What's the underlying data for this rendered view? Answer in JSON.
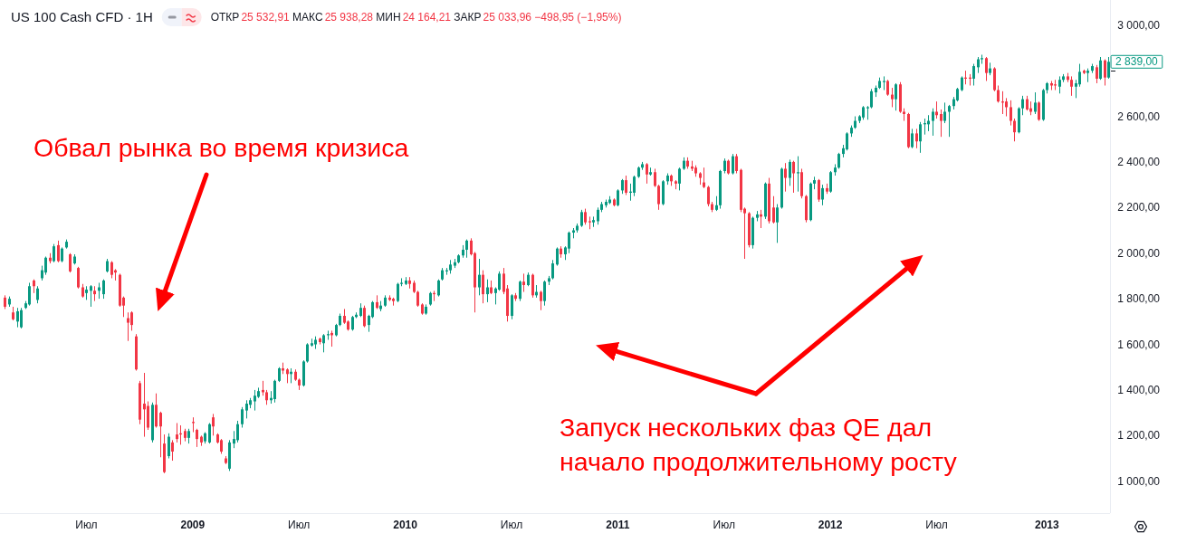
{
  "chart_data": {
    "type": "candlestick",
    "title": "US 100 Cash CFD · 1H",
    "subtitle": "ОТКР25 532,91 МАКС25 938,28 МИН24 164,21 ЗАКР25 033,96 −498,95 (−1,95%)",
    "x": [
      "2008-02-18",
      "2008-02-25",
      "2008-03-03",
      "2008-03-10",
      "2008-03-17",
      "2008-03-24",
      "2008-03-31",
      "2008-04-07",
      "2008-04-14",
      "2008-04-21",
      "2008-04-28",
      "2008-05-05",
      "2008-05-12",
      "2008-05-19",
      "2008-05-26",
      "2008-06-02",
      "2008-06-09",
      "2008-06-16",
      "2008-06-23",
      "2008-06-30",
      "2008-07-07",
      "2008-07-14",
      "2008-07-21",
      "2008-07-28",
      "2008-08-04",
      "2008-08-11",
      "2008-08-18",
      "2008-08-25",
      "2008-09-01",
      "2008-09-08",
      "2008-09-15",
      "2008-09-22",
      "2008-09-29",
      "2008-10-06",
      "2008-10-13",
      "2008-10-20",
      "2008-10-27",
      "2008-11-03",
      "2008-11-10",
      "2008-11-17",
      "2008-11-24",
      "2008-12-01",
      "2008-12-08",
      "2008-12-15",
      "2008-12-22",
      "2008-12-29",
      "2009-01-05",
      "2009-01-12",
      "2009-01-19",
      "2009-01-26",
      "2009-02-02",
      "2009-02-09",
      "2009-02-16",
      "2009-02-23",
      "2009-03-02",
      "2009-03-09",
      "2009-03-16",
      "2009-03-23",
      "2009-03-30",
      "2009-04-06",
      "2009-04-13",
      "2009-04-20",
      "2009-04-27",
      "2009-05-04",
      "2009-05-11",
      "2009-05-18",
      "2009-05-25",
      "2009-06-01",
      "2009-06-08",
      "2009-06-15",
      "2009-06-22",
      "2009-06-29",
      "2009-07-06",
      "2009-07-13",
      "2009-07-20",
      "2009-07-27",
      "2009-08-03",
      "2009-08-10",
      "2009-08-17",
      "2009-08-24",
      "2009-08-31",
      "2009-09-07",
      "2009-09-14",
      "2009-09-21",
      "2009-09-28",
      "2009-10-05",
      "2009-10-12",
      "2009-10-19",
      "2009-10-26",
      "2009-11-02",
      "2009-11-09",
      "2009-11-16",
      "2009-11-23",
      "2009-11-30",
      "2009-12-07",
      "2009-12-14",
      "2009-12-21",
      "2009-12-28",
      "2010-01-04",
      "2010-01-11",
      "2010-01-18",
      "2010-01-25",
      "2010-02-01",
      "2010-02-08",
      "2010-02-15",
      "2010-02-22",
      "2010-03-01",
      "2010-03-08",
      "2010-03-15",
      "2010-03-22",
      "2010-03-29",
      "2010-04-05",
      "2010-04-12",
      "2010-04-19",
      "2010-04-26",
      "2010-05-03",
      "2010-05-10",
      "2010-05-17",
      "2010-05-24",
      "2010-05-31",
      "2010-06-07",
      "2010-06-14",
      "2010-06-21",
      "2010-06-28",
      "2010-07-05",
      "2010-07-12",
      "2010-07-19",
      "2010-07-26",
      "2010-08-02",
      "2010-08-09",
      "2010-08-16",
      "2010-08-23",
      "2010-08-30",
      "2010-09-06",
      "2010-09-13",
      "2010-09-20",
      "2010-09-27",
      "2010-10-04",
      "2010-10-11",
      "2010-10-18",
      "2010-10-25",
      "2010-11-01",
      "2010-11-08",
      "2010-11-15",
      "2010-11-22",
      "2010-11-29",
      "2010-12-06",
      "2010-12-13",
      "2010-12-20",
      "2010-12-27",
      "2011-01-03",
      "2011-01-10",
      "2011-01-17",
      "2011-01-24",
      "2011-01-31",
      "2011-02-07",
      "2011-02-14",
      "2011-02-21",
      "2011-02-28",
      "2011-03-07",
      "2011-03-14",
      "2011-03-21",
      "2011-03-28",
      "2011-04-04",
      "2011-04-11",
      "2011-04-18",
      "2011-04-25",
      "2011-05-02",
      "2011-05-09",
      "2011-05-16",
      "2011-05-23",
      "2011-05-30",
      "2011-06-06",
      "2011-06-13",
      "2011-06-20",
      "2011-06-27",
      "2011-07-04",
      "2011-07-11",
      "2011-07-18",
      "2011-07-25",
      "2011-08-01",
      "2011-08-08",
      "2011-08-15",
      "2011-08-22",
      "2011-08-29",
      "2011-09-05",
      "2011-09-12",
      "2011-09-19",
      "2011-09-26",
      "2011-10-03",
      "2011-10-10",
      "2011-10-17",
      "2011-10-24",
      "2011-10-31",
      "2011-11-07",
      "2011-11-14",
      "2011-11-21",
      "2011-11-28",
      "2011-12-05",
      "2011-12-12",
      "2011-12-19",
      "2011-12-26",
      "2012-01-02",
      "2012-01-09",
      "2012-01-16",
      "2012-01-23",
      "2012-01-30",
      "2012-02-06",
      "2012-02-13",
      "2012-02-20",
      "2012-02-27",
      "2012-03-05",
      "2012-03-12",
      "2012-03-19",
      "2012-03-26",
      "2012-04-02",
      "2012-04-09",
      "2012-04-16",
      "2012-04-23",
      "2012-04-30",
      "2012-05-07",
      "2012-05-14",
      "2012-05-21",
      "2012-05-28",
      "2012-06-04",
      "2012-06-11",
      "2012-06-18",
      "2012-06-25",
      "2012-07-02",
      "2012-07-09",
      "2012-07-16",
      "2012-07-23",
      "2012-07-30",
      "2012-08-06",
      "2012-08-13",
      "2012-08-20",
      "2012-08-27",
      "2012-09-03",
      "2012-09-10",
      "2012-09-17",
      "2012-09-24",
      "2012-10-01",
      "2012-10-08",
      "2012-10-15",
      "2012-10-22",
      "2012-10-29",
      "2012-11-05",
      "2012-11-12",
      "2012-11-19",
      "2012-11-26",
      "2012-12-03",
      "2012-12-10",
      "2012-12-17",
      "2012-12-24",
      "2012-12-31",
      "2013-01-07",
      "2013-01-14",
      "2013-01-21",
      "2013-01-28",
      "2013-02-04",
      "2013-02-11",
      "2013-02-18",
      "2013-02-25",
      "2013-03-04",
      "2013-03-11",
      "2013-03-18",
      "2013-03-25",
      "2013-04-01",
      "2013-04-08",
      "2013-04-15",
      "2013-04-22"
    ],
    "ohlc": [
      [
        1805,
        1815,
        1755,
        1765
      ],
      [
        1775,
        1810,
        1765,
        1800
      ],
      [
        1740,
        1765,
        1705,
        1710
      ],
      [
        1700,
        1760,
        1675,
        1745
      ],
      [
        1675,
        1760,
        1670,
        1750
      ],
      [
        1760,
        1790,
        1755,
        1780
      ],
      [
        1775,
        1870,
        1770,
        1855
      ],
      [
        1880,
        1885,
        1825,
        1855
      ],
      [
        1795,
        1855,
        1780,
        1845
      ],
      [
        1890,
        1945,
        1880,
        1925
      ],
      [
        1915,
        1985,
        1905,
        1980
      ],
      [
        1980,
        2000,
        1955,
        1965
      ],
      [
        1965,
        2040,
        1960,
        2030
      ],
      [
        2035,
        2055,
        1960,
        1965
      ],
      [
        1965,
        2025,
        1960,
        2020
      ],
      [
        2025,
        2060,
        2020,
        2050
      ],
      [
        1995,
        2000,
        1915,
        1920
      ],
      [
        1955,
        1995,
        1950,
        1985
      ],
      [
        1935,
        1940,
        1845,
        1850
      ],
      [
        1850,
        1865,
        1805,
        1810
      ],
      [
        1825,
        1855,
        1795,
        1840
      ],
      [
        1835,
        1860,
        1765,
        1855
      ],
      [
        1835,
        1855,
        1790,
        1820
      ],
      [
        1835,
        1870,
        1800,
        1850
      ],
      [
        1820,
        1885,
        1800,
        1880
      ],
      [
        1920,
        1975,
        1915,
        1965
      ],
      [
        1960,
        1965,
        1890,
        1905
      ],
      [
        1925,
        1930,
        1880,
        1915
      ],
      [
        1905,
        1910,
        1765,
        1770
      ],
      [
        1805,
        1810,
        1720,
        1770
      ],
      [
        1715,
        1740,
        1615,
        1695
      ],
      [
        1740,
        1745,
        1660,
        1685
      ],
      [
        1635,
        1645,
        1485,
        1490
      ],
      [
        1430,
        1440,
        1250,
        1270
      ],
      [
        1340,
        1475,
        1195,
        1315
      ],
      [
        1330,
        1350,
        1225,
        1235
      ],
      [
        1180,
        1345,
        1170,
        1335
      ],
      [
        1335,
        1385,
        1235,
        1240
      ],
      [
        1300,
        1305,
        1105,
        1240
      ],
      [
        1165,
        1205,
        1035,
        1040
      ],
      [
        1110,
        1210,
        1100,
        1195
      ],
      [
        1170,
        1180,
        1090,
        1130
      ],
      [
        1205,
        1255,
        1170,
        1185
      ],
      [
        1210,
        1245,
        1160,
        1205
      ],
      [
        1220,
        1230,
        1175,
        1190
      ],
      [
        1190,
        1230,
        1165,
        1220
      ],
      [
        1260,
        1280,
        1215,
        1255
      ],
      [
        1225,
        1230,
        1150,
        1185
      ],
      [
        1195,
        1200,
        1155,
        1170
      ],
      [
        1175,
        1215,
        1165,
        1210
      ],
      [
        1170,
        1255,
        1165,
        1250
      ],
      [
        1280,
        1295,
        1200,
        1240
      ],
      [
        1205,
        1210,
        1165,
        1170
      ],
      [
        1180,
        1185,
        1120,
        1130
      ],
      [
        1100,
        1110,
        1075,
        1080
      ],
      [
        1055,
        1180,
        1045,
        1170
      ],
      [
        1165,
        1220,
        1145,
        1185
      ],
      [
        1180,
        1265,
        1170,
        1250
      ],
      [
        1250,
        1325,
        1235,
        1315
      ],
      [
        1310,
        1355,
        1275,
        1340
      ],
      [
        1335,
        1365,
        1320,
        1355
      ],
      [
        1350,
        1400,
        1310,
        1375
      ],
      [
        1370,
        1410,
        1365,
        1395
      ],
      [
        1400,
        1440,
        1375,
        1390
      ],
      [
        1390,
        1400,
        1335,
        1355
      ],
      [
        1355,
        1395,
        1340,
        1365
      ],
      [
        1360,
        1445,
        1345,
        1440
      ],
      [
        1440,
        1500,
        1435,
        1495
      ],
      [
        1495,
        1520,
        1470,
        1485
      ],
      [
        1490,
        1495,
        1430,
        1470
      ],
      [
        1470,
        1495,
        1430,
        1480
      ],
      [
        1480,
        1490,
        1440,
        1445
      ],
      [
        1445,
        1450,
        1400,
        1420
      ],
      [
        1420,
        1530,
        1415,
        1525
      ],
      [
        1525,
        1605,
        1520,
        1600
      ],
      [
        1595,
        1625,
        1590,
        1605
      ],
      [
        1600,
        1635,
        1580,
        1620
      ],
      [
        1625,
        1630,
        1600,
        1610
      ],
      [
        1605,
        1645,
        1565,
        1640
      ],
      [
        1640,
        1660,
        1620,
        1645
      ],
      [
        1650,
        1660,
        1590,
        1640
      ],
      [
        1640,
        1690,
        1635,
        1685
      ],
      [
        1685,
        1735,
        1680,
        1725
      ],
      [
        1725,
        1755,
        1690,
        1695
      ],
      [
        1700,
        1705,
        1660,
        1665
      ],
      [
        1665,
        1725,
        1660,
        1720
      ],
      [
        1720,
        1740,
        1715,
        1730
      ],
      [
        1725,
        1780,
        1720,
        1760
      ],
      [
        1760,
        1770,
        1675,
        1680
      ],
      [
        1685,
        1730,
        1655,
        1725
      ],
      [
        1720,
        1790,
        1715,
        1785
      ],
      [
        1785,
        1815,
        1755,
        1760
      ],
      [
        1755,
        1790,
        1745,
        1770
      ],
      [
        1770,
        1815,
        1765,
        1805
      ],
      [
        1805,
        1815,
        1790,
        1795
      ],
      [
        1800,
        1805,
        1770,
        1790
      ],
      [
        1790,
        1870,
        1785,
        1865
      ],
      [
        1865,
        1890,
        1855,
        1870
      ],
      [
        1865,
        1895,
        1860,
        1880
      ],
      [
        1880,
        1895,
        1845,
        1865
      ],
      [
        1870,
        1880,
        1825,
        1830
      ],
      [
        1830,
        1835,
        1765,
        1770
      ],
      [
        1775,
        1780,
        1730,
        1735
      ],
      [
        1735,
        1775,
        1730,
        1765
      ],
      [
        1775,
        1830,
        1770,
        1825
      ],
      [
        1825,
        1835,
        1790,
        1820
      ],
      [
        1815,
        1885,
        1810,
        1880
      ],
      [
        1885,
        1935,
        1880,
        1925
      ],
      [
        1920,
        1935,
        1905,
        1925
      ],
      [
        1925,
        1970,
        1910,
        1950
      ],
      [
        1945,
        1975,
        1935,
        1960
      ],
      [
        1960,
        1995,
        1955,
        1990
      ],
      [
        1990,
        2035,
        1980,
        2015
      ],
      [
        2015,
        2060,
        1980,
        2055
      ],
      [
        2055,
        2065,
        1990,
        1995
      ],
      [
        2000,
        2005,
        1740,
        1850
      ],
      [
        1850,
        1975,
        1815,
        1905
      ],
      [
        1905,
        1925,
        1780,
        1820
      ],
      [
        1820,
        1885,
        1785,
        1850
      ],
      [
        1850,
        1880,
        1820,
        1825
      ],
      [
        1825,
        1850,
        1775,
        1845
      ],
      [
        1840,
        1920,
        1835,
        1910
      ],
      [
        1910,
        1935,
        1820,
        1830
      ],
      [
        1845,
        1860,
        1700,
        1725
      ],
      [
        1725,
        1820,
        1710,
        1815
      ],
      [
        1815,
        1825,
        1790,
        1800
      ],
      [
        1800,
        1880,
        1790,
        1875
      ],
      [
        1875,
        1910,
        1830,
        1860
      ],
      [
        1860,
        1915,
        1855,
        1905
      ],
      [
        1905,
        1910,
        1805,
        1815
      ],
      [
        1815,
        1860,
        1805,
        1830
      ],
      [
        1830,
        1835,
        1750,
        1790
      ],
      [
        1790,
        1880,
        1770,
        1875
      ],
      [
        1875,
        1900,
        1860,
        1890
      ],
      [
        1890,
        1970,
        1885,
        1955
      ],
      [
        1950,
        2025,
        1945,
        2020
      ],
      [
        2020,
        2030,
        1980,
        1995
      ],
      [
        1995,
        2030,
        1970,
        2025
      ],
      [
        2020,
        2095,
        2000,
        2090
      ],
      [
        2090,
        2110,
        2065,
        2100
      ],
      [
        2100,
        2130,
        2090,
        2120
      ],
      [
        2120,
        2190,
        2115,
        2180
      ],
      [
        2180,
        2195,
        2125,
        2135
      ],
      [
        2140,
        2160,
        2105,
        2135
      ],
      [
        2135,
        2160,
        2115,
        2145
      ],
      [
        2140,
        2200,
        2125,
        2190
      ],
      [
        2190,
        2225,
        2180,
        2215
      ],
      [
        2210,
        2235,
        2200,
        2225
      ],
      [
        2220,
        2250,
        2215,
        2235
      ],
      [
        2235,
        2240,
        2205,
        2210
      ],
      [
        2210,
        2280,
        2205,
        2275
      ],
      [
        2275,
        2325,
        2260,
        2320
      ],
      [
        2320,
        2340,
        2255,
        2265
      ],
      [
        2265,
        2305,
        2230,
        2270
      ],
      [
        2265,
        2340,
        2250,
        2335
      ],
      [
        2335,
        2380,
        2330,
        2375
      ],
      [
        2375,
        2400,
        2365,
        2390
      ],
      [
        2390,
        2395,
        2305,
        2345
      ],
      [
        2345,
        2375,
        2340,
        2355
      ],
      [
        2355,
        2370,
        2290,
        2295
      ],
      [
        2295,
        2300,
        2190,
        2215
      ],
      [
        2215,
        2320,
        2210,
        2315
      ],
      [
        2315,
        2350,
        2300,
        2340
      ],
      [
        2340,
        2345,
        2295,
        2315
      ],
      [
        2315,
        2320,
        2280,
        2305
      ],
      [
        2305,
        2375,
        2275,
        2370
      ],
      [
        2370,
        2420,
        2365,
        2405
      ],
      [
        2405,
        2420,
        2370,
        2380
      ],
      [
        2380,
        2405,
        2360,
        2370
      ],
      [
        2375,
        2385,
        2335,
        2350
      ],
      [
        2350,
        2355,
        2300,
        2330
      ],
      [
        2310,
        2375,
        2285,
        2290
      ],
      [
        2290,
        2295,
        2205,
        2215
      ],
      [
        2215,
        2225,
        2180,
        2190
      ],
      [
        2190,
        2250,
        2185,
        2210
      ],
      [
        2210,
        2365,
        2195,
        2360
      ],
      [
        2360,
        2415,
        2350,
        2405
      ],
      [
        2405,
        2410,
        2345,
        2350
      ],
      [
        2350,
        2435,
        2345,
        2425
      ],
      [
        2425,
        2435,
        2350,
        2360
      ],
      [
        2365,
        2370,
        2180,
        2190
      ],
      [
        2195,
        2200,
        1975,
        2175
      ],
      [
        2175,
        2180,
        2025,
        2035
      ],
      [
        2035,
        2160,
        2020,
        2155
      ],
      [
        2155,
        2185,
        2140,
        2170
      ],
      [
        2170,
        2190,
        2110,
        2160
      ],
      [
        2160,
        2310,
        2150,
        2305
      ],
      [
        2305,
        2330,
        2130,
        2140
      ],
      [
        2200,
        2250,
        2130,
        2135
      ],
      [
        2135,
        2215,
        2045,
        2200
      ],
      [
        2200,
        2375,
        2195,
        2370
      ],
      [
        2370,
        2395,
        2270,
        2330
      ],
      [
        2330,
        2410,
        2295,
        2400
      ],
      [
        2400,
        2405,
        2265,
        2350
      ],
      [
        2350,
        2425,
        2270,
        2355
      ],
      [
        2355,
        2370,
        2240,
        2250
      ],
      [
        2250,
        2255,
        2135,
        2145
      ],
      [
        2145,
        2310,
        2140,
        2305
      ],
      [
        2305,
        2335,
        2280,
        2320
      ],
      [
        2320,
        2325,
        2225,
        2235
      ],
      [
        2235,
        2300,
        2210,
        2285
      ],
      [
        2285,
        2305,
        2260,
        2270
      ],
      [
        2270,
        2360,
        2265,
        2355
      ],
      [
        2355,
        2390,
        2340,
        2375
      ],
      [
        2375,
        2440,
        2370,
        2435
      ],
      [
        2435,
        2475,
        2420,
        2460
      ],
      [
        2455,
        2530,
        2450,
        2525
      ],
      [
        2525,
        2560,
        2510,
        2550
      ],
      [
        2550,
        2600,
        2545,
        2580
      ],
      [
        2580,
        2605,
        2570,
        2600
      ],
      [
        2595,
        2645,
        2585,
        2640
      ],
      [
        2635,
        2645,
        2585,
        2640
      ],
      [
        2640,
        2720,
        2635,
        2710
      ],
      [
        2705,
        2735,
        2685,
        2725
      ],
      [
        2725,
        2770,
        2720,
        2755
      ],
      [
        2750,
        2775,
        2715,
        2755
      ],
      [
        2755,
        2760,
        2690,
        2695
      ],
      [
        2695,
        2725,
        2640,
        2675
      ],
      [
        2675,
        2745,
        2625,
        2740
      ],
      [
        2740,
        2750,
        2615,
        2620
      ],
      [
        2620,
        2635,
        2580,
        2610
      ],
      [
        2610,
        2615,
        2460,
        2465
      ],
      [
        2465,
        2545,
        2460,
        2525
      ],
      [
        2525,
        2545,
        2460,
        2490
      ],
      [
        2490,
        2575,
        2440,
        2565
      ],
      [
        2565,
        2590,
        2520,
        2570
      ],
      [
        2565,
        2605,
        2535,
        2580
      ],
      [
        2580,
        2635,
        2515,
        2620
      ],
      [
        2620,
        2665,
        2590,
        2605
      ],
      [
        2610,
        2630,
        2510,
        2580
      ],
      [
        2580,
        2660,
        2570,
        2620
      ],
      [
        2620,
        2650,
        2510,
        2645
      ],
      [
        2645,
        2685,
        2630,
        2675
      ],
      [
        2670,
        2725,
        2665,
        2720
      ],
      [
        2715,
        2775,
        2710,
        2770
      ],
      [
        2770,
        2800,
        2740,
        2765
      ],
      [
        2770,
        2785,
        2735,
        2765
      ],
      [
        2765,
        2830,
        2735,
        2820
      ],
      [
        2815,
        2860,
        2790,
        2850
      ],
      [
        2850,
        2870,
        2830,
        2855
      ],
      [
        2855,
        2860,
        2755,
        2790
      ],
      [
        2790,
        2835,
        2780,
        2810
      ],
      [
        2810,
        2815,
        2710,
        2715
      ],
      [
        2715,
        2735,
        2660,
        2665
      ],
      [
        2665,
        2710,
        2610,
        2660
      ],
      [
        2665,
        2680,
        2600,
        2640
      ],
      [
        2640,
        2670,
        2560,
        2580
      ],
      [
        2580,
        2590,
        2490,
        2530
      ],
      [
        2530,
        2640,
        2525,
        2635
      ],
      [
        2635,
        2690,
        2605,
        2675
      ],
      [
        2675,
        2690,
        2625,
        2630
      ],
      [
        2635,
        2665,
        2605,
        2620
      ],
      [
        2620,
        2705,
        2610,
        2660
      ],
      [
        2660,
        2665,
        2580,
        2585
      ],
      [
        2585,
        2720,
        2580,
        2715
      ],
      [
        2715,
        2750,
        2700,
        2745
      ],
      [
        2745,
        2755,
        2715,
        2735
      ],
      [
        2740,
        2760,
        2715,
        2735
      ],
      [
        2730,
        2775,
        2700,
        2760
      ],
      [
        2760,
        2785,
        2750,
        2775
      ],
      [
        2775,
        2790,
        2750,
        2760
      ],
      [
        2760,
        2775,
        2690,
        2730
      ],
      [
        2730,
        2760,
        2680,
        2745
      ],
      [
        2740,
        2830,
        2730,
        2795
      ],
      [
        2800,
        2805,
        2785,
        2790
      ],
      [
        2790,
        2810,
        2750,
        2800
      ],
      [
        2800,
        2830,
        2790,
        2820
      ],
      [
        2815,
        2825,
        2745,
        2765
      ],
      [
        2765,
        2860,
        2760,
        2845
      ],
      [
        2845,
        2850,
        2735,
        2770
      ],
      [
        2770,
        2860,
        2765,
        2839
      ]
    ],
    "xlim": [
      "2008-02-10",
      "2013-04-25"
    ],
    "ylim": [
      860,
      3110
    ],
    "xticks": [
      {
        "value": "2008-07-07",
        "label": "Июл"
      },
      {
        "value": "2009-01-05",
        "label": "2009"
      },
      {
        "value": "2009-07-06",
        "label": "Июл"
      },
      {
        "value": "2010-01-04",
        "label": "2010"
      },
      {
        "value": "2010-07-05",
        "label": "Июл"
      },
      {
        "value": "2011-01-03",
        "label": "2011"
      },
      {
        "value": "2011-07-04",
        "label": "Июл"
      },
      {
        "value": "2012-01-02",
        "label": "2012"
      },
      {
        "value": "2012-07-02",
        "label": "Июл"
      },
      {
        "value": "2013-01-07",
        "label": "2013"
      }
    ],
    "yticks": [
      {
        "value": 1000,
        "label": "1 000,00"
      },
      {
        "value": 1200,
        "label": "1 200,00"
      },
      {
        "value": 1400,
        "label": "1 400,00"
      },
      {
        "value": 1600,
        "label": "1 600,00"
      },
      {
        "value": 1800,
        "label": "1 800,00"
      },
      {
        "value": 2000,
        "label": "2 000,00"
      },
      {
        "value": 2200,
        "label": "2 200,00"
      },
      {
        "value": 2400,
        "label": "2 400,00"
      },
      {
        "value": 2600,
        "label": "2 600,00"
      },
      {
        "value": 2800,
        "label": null
      },
      {
        "value": 3000,
        "label": "3 000,00"
      }
    ],
    "annotations": [
      "Обвал рынка во время кризиса",
      "Запуск нескольких фаз QE дал начало продолжительному росту",
      {
        "text": "2 839,00",
        "x": "2013-04-22",
        "y": 2839
      }
    ]
  }
}
